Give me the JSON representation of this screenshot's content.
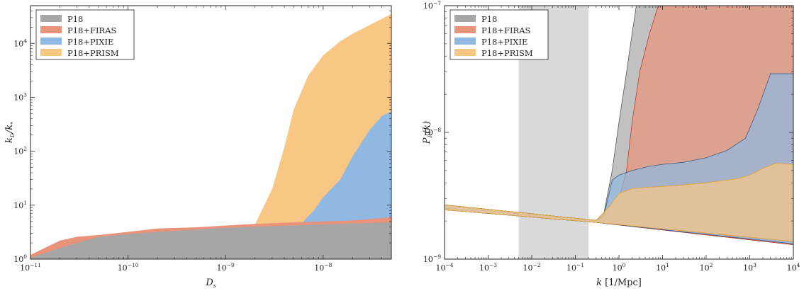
{
  "chart_data": [
    {
      "type": "area",
      "xlabel": "D_s",
      "ylabel": "k_D/k_*",
      "xscale": "log",
      "yscale": "log",
      "xlim": [
        1e-11,
        5e-08
      ],
      "ylim": [
        1,
        50000
      ],
      "x_ticks": [
        1e-11,
        1e-10,
        1e-09,
        1e-08
      ],
      "x_tick_labels": [
        {
          "base": "10",
          "exp": "−11"
        },
        {
          "base": "10",
          "exp": "−10"
        },
        {
          "base": "10",
          "exp": "−9"
        },
        {
          "base": "10",
          "exp": "−8"
        }
      ],
      "y_ticks": [
        1,
        10,
        100,
        1000,
        10000
      ],
      "y_tick_labels": [
        {
          "base": "10",
          "exp": "0"
        },
        {
          "base": "10",
          "exp": "1"
        },
        {
          "base": "10",
          "exp": "2"
        },
        {
          "base": "10",
          "exp": "3"
        },
        {
          "base": "10",
          "exp": "4"
        }
      ],
      "legend_position": "top-left",
      "series": [
        {
          "name": "P18+PRISM",
          "color": "#f9c784",
          "points": [
            [
              1e-11,
              1
            ],
            [
              2e-09,
              4.4
            ],
            [
              3e-09,
              20
            ],
            [
              4e-09,
              120
            ],
            [
              5e-09,
              600
            ],
            [
              7e-09,
              2500
            ],
            [
              1e-08,
              6000
            ],
            [
              1.5e-08,
              11000
            ],
            [
              2e-08,
              15000
            ],
            [
              3e-08,
              22000
            ],
            [
              5e-08,
              35000
            ]
          ]
        },
        {
          "name": "P18+PIXIE",
          "color": "#8fb9e3",
          "points": [
            [
              1e-11,
              1
            ],
            [
              6e-09,
              4.6
            ],
            [
              8e-09,
              8
            ],
            [
              1e-08,
              14
            ],
            [
              1.5e-08,
              30
            ],
            [
              2e-08,
              80
            ],
            [
              3e-08,
              250
            ],
            [
              4e-08,
              450
            ],
            [
              5e-08,
              550
            ]
          ]
        },
        {
          "name": "P18+FIRAS",
          "color": "#e8937a",
          "points": [
            [
              1e-11,
              1.2
            ],
            [
              2e-11,
              2.2
            ],
            [
              3e-11,
              2.6
            ],
            [
              5e-11,
              2.8
            ],
            [
              1e-10,
              3.2
            ],
            [
              2e-10,
              3.7
            ],
            [
              5e-10,
              3.9
            ],
            [
              1e-09,
              4.2
            ],
            [
              2e-09,
              4.5
            ],
            [
              5e-09,
              4.8
            ],
            [
              1e-08,
              5
            ],
            [
              2e-08,
              5.2
            ],
            [
              5e-08,
              6
            ]
          ]
        },
        {
          "name": "P18",
          "color": "#a6a6a6",
          "points": [
            [
              1e-11,
              1.05
            ],
            [
              2e-11,
              1.6
            ],
            [
              3e-11,
              2
            ],
            [
              5e-11,
              2.6
            ],
            [
              1e-10,
              2.9
            ],
            [
              2e-10,
              3.2
            ],
            [
              5e-10,
              3.55
            ],
            [
              1e-09,
              3.8
            ],
            [
              2e-09,
              4
            ],
            [
              5e-09,
              4.2
            ],
            [
              1e-08,
              4.4
            ],
            [
              2e-08,
              4.6
            ],
            [
              5e-08,
              4.8
            ]
          ]
        }
      ]
    },
    {
      "type": "area",
      "xlabel": "k [1/Mpc]",
      "ylabel": "P_R(k)",
      "xscale": "log",
      "yscale": "log",
      "xlim": [
        0.0001,
        10000
      ],
      "ylim": [
        1e-09,
        1e-07
      ],
      "x_ticks": [
        0.0001,
        0.001,
        0.01,
        0.1,
        1,
        10,
        100,
        1000,
        10000
      ],
      "x_tick_labels": [
        {
          "base": "10",
          "exp": "−4"
        },
        {
          "base": "10",
          "exp": "−3"
        },
        {
          "base": "10",
          "exp": "−2"
        },
        {
          "base": "10",
          "exp": "−1"
        },
        {
          "base": "10",
          "exp": "0"
        },
        {
          "base": "10",
          "exp": "1"
        },
        {
          "base": "10",
          "exp": "2"
        },
        {
          "base": "10",
          "exp": "3"
        },
        {
          "base": "10",
          "exp": "4"
        }
      ],
      "y_ticks": [
        1e-09,
        1e-08,
        1e-07
      ],
      "y_tick_labels": [
        {
          "base": "10",
          "exp": "−9"
        },
        {
          "base": "10",
          "exp": "−8"
        },
        {
          "base": "10",
          "exp": "−7"
        }
      ],
      "legend_position": "top-left",
      "shaded_band": {
        "x_range": [
          0.005,
          0.2
        ],
        "color": "#d9d9d9"
      },
      "series": [
        {
          "name": "P18",
          "color": "#a6a6a6",
          "upper": [
            [
              0.0001,
              2.68e-09
            ],
            [
              0.3,
              2.02e-09
            ],
            [
              0.45,
              2.3e-09
            ],
            [
              0.7,
              5e-09
            ],
            [
              1,
              1.2e-08
            ],
            [
              1.5,
              3e-08
            ],
            [
              2,
              6e-08
            ],
            [
              2.5,
              1e-07
            ],
            [
              10000,
              1e-07
            ]
          ],
          "lower": [
            [
              0.0001,
              2.45e-09
            ],
            [
              0.3,
              1.95e-09
            ],
            [
              10000,
              1.3e-09
            ]
          ]
        },
        {
          "name": "P18+FIRAS",
          "color": "#e8937a",
          "upper": [
            [
              0.0001,
              2.68e-09
            ],
            [
              0.3,
              2.02e-09
            ],
            [
              0.45,
              2.15e-09
            ],
            [
              0.6,
              2.5e-09
            ],
            [
              1,
              3e-09
            ],
            [
              1.5,
              5e-09
            ],
            [
              2,
              1.2e-08
            ],
            [
              3,
              3e-08
            ],
            [
              5,
              6e-08
            ],
            [
              8,
              1e-07
            ],
            [
              10000,
              1e-07
            ]
          ],
          "lower": [
            [
              0.0001,
              2.45e-09
            ],
            [
              0.3,
              1.95e-09
            ],
            [
              10000,
              1.3e-09
            ]
          ]
        },
        {
          "name": "P18+PIXIE",
          "color": "#8fb9e3",
          "upper": [
            [
              0.0001,
              2.68e-09
            ],
            [
              0.3,
              2.02e-09
            ],
            [
              0.45,
              2.2e-09
            ],
            [
              0.7,
              4.2e-09
            ],
            [
              1,
              4.6e-09
            ],
            [
              2,
              5e-09
            ],
            [
              5,
              5.4e-09
            ],
            [
              10,
              5.6e-09
            ],
            [
              30,
              5.8e-09
            ],
            [
              100,
              6.3e-09
            ],
            [
              300,
              7.2e-09
            ],
            [
              800,
              9e-09
            ],
            [
              1500,
              1.5e-08
            ],
            [
              3000,
              2.9e-08
            ],
            [
              10000,
              2.9e-08
            ]
          ],
          "lower": [
            [
              0.0001,
              2.45e-09
            ],
            [
              0.3,
              1.95e-09
            ],
            [
              10000,
              1.32e-09
            ]
          ]
        },
        {
          "name": "P18+PRISM",
          "color": "#f9c784",
          "upper": [
            [
              0.0001,
              2.68e-09
            ],
            [
              0.3,
              2.02e-09
            ],
            [
              0.6,
              2.6e-09
            ],
            [
              1,
              3.3e-09
            ],
            [
              2,
              3.6e-09
            ],
            [
              5,
              3.7e-09
            ],
            [
              20,
              3.8e-09
            ],
            [
              100,
              4e-09
            ],
            [
              500,
              4.3e-09
            ],
            [
              1000,
              4.6e-09
            ],
            [
              2000,
              5.2e-09
            ],
            [
              4000,
              5.7e-09
            ],
            [
              10000,
              5.6e-09
            ]
          ],
          "lower": [
            [
              0.0001,
              2.45e-09
            ],
            [
              0.3,
              1.95e-09
            ],
            [
              10000,
              1.38e-09
            ]
          ]
        }
      ]
    }
  ]
}
